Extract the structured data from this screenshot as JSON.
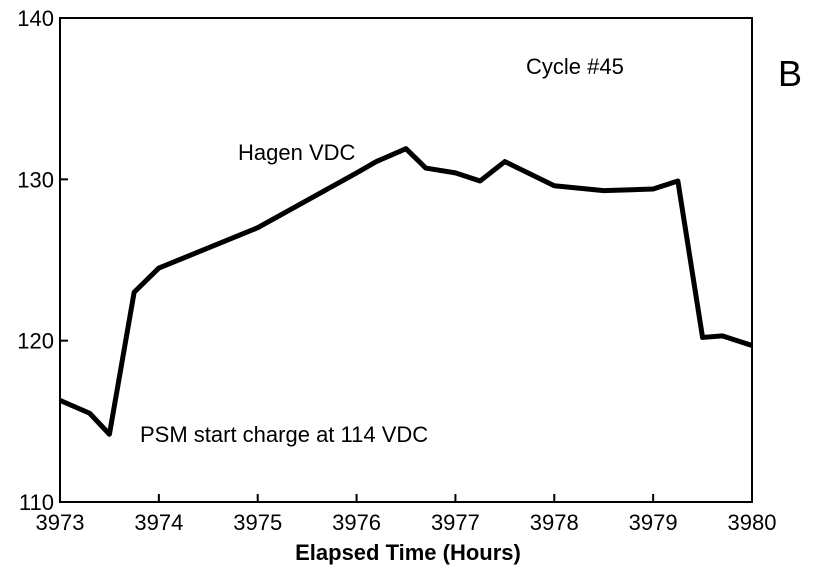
{
  "chart_data": {
    "type": "line",
    "x_label": "Elapsed Time (Hours)",
    "annotations": [
      "Cycle #45",
      "B",
      "Hagen VDC",
      "PSM start charge at 114 VDC"
    ],
    "series": [
      {
        "name": "Hagen VDC",
        "color": "#000000",
        "x": [
          3973,
          3973.3,
          3973.5,
          3973.75,
          3974,
          3975,
          3976,
          3976.2,
          3976.5,
          3976.7,
          3977,
          3977.25,
          3977.5,
          3978,
          3978.5,
          3979,
          3979.25,
          3979.5,
          3979.7,
          3980
        ],
        "values": [
          116.3,
          115.5,
          114.2,
          123.0,
          124.5,
          127.0,
          130.4,
          131.1,
          131.9,
          130.7,
          130.4,
          129.9,
          131.1,
          129.6,
          129.3,
          129.4,
          129.9,
          120.2,
          120.3,
          119.7
        ]
      }
    ],
    "xlim": [
      3973,
      3980
    ],
    "xticks": [
      3973,
      3974,
      3975,
      3976,
      3977,
      3978,
      3979,
      3980
    ],
    "ylim": [
      110,
      140
    ],
    "yticks": [
      110,
      120,
      130,
      140
    ]
  }
}
